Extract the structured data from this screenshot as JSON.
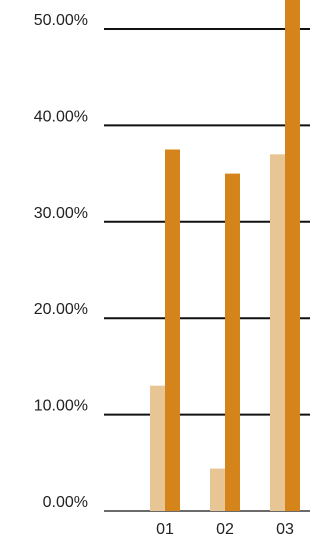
{
  "chart_data": {
    "type": "bar",
    "categories": [
      "01",
      "02",
      "03"
    ],
    "series": [
      {
        "values": [
          13.0,
          4.4,
          37.0
        ],
        "color": "#E8C594"
      },
      {
        "values": [
          37.5,
          35.0,
          54.0
        ],
        "color": "#D4841A"
      }
    ],
    "y_ticks": [
      "0.00%",
      "10.00%",
      "20.00%",
      "30.00%",
      "40.00%",
      "50.00%"
    ],
    "ylim": [
      0,
      50
    ],
    "grid": true,
    "legend": "none"
  }
}
